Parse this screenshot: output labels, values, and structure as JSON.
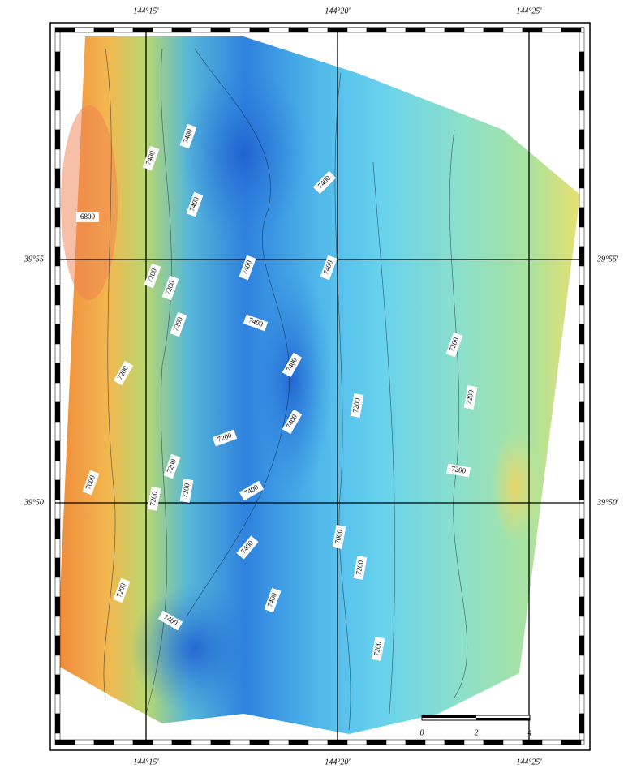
{
  "map": {
    "top_labels": [
      "144°15'",
      "144°20'",
      "144°25'"
    ],
    "bottom_labels": [
      "144°15'",
      "144°20'",
      "144°25'"
    ],
    "left_labels": [
      "39°55'",
      "39°50'"
    ],
    "right_labels": [
      "39°55'",
      "39°50'"
    ],
    "contour_labels": [
      "7400",
      "7400",
      "7400",
      "6800",
      "7400",
      "7400",
      "7400",
      "7200",
      "7200",
      "7200",
      "7400",
      "7400",
      "7200",
      "7200",
      "7200",
      "7200",
      "7400",
      "7200",
      "7200",
      "7200",
      "7200",
      "7000",
      "7400",
      "7200",
      "7400",
      "7000",
      "7200",
      "7400",
      "7400",
      "7200",
      "7200"
    ],
    "scale_labels": [
      "0",
      "2",
      "4"
    ]
  }
}
